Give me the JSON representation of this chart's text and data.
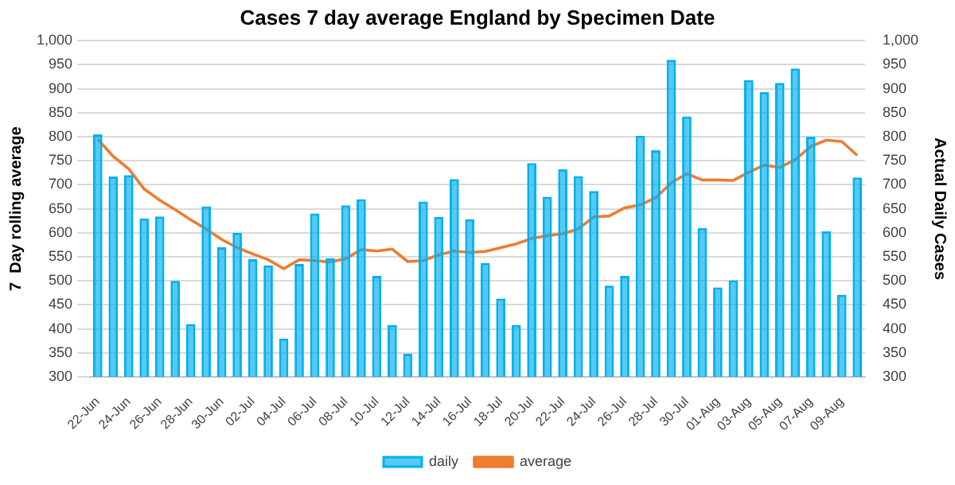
{
  "chart_data": {
    "type": "bar",
    "title": "Cases 7 day average England by Specimen Date",
    "ylabel": "7  Day rolling average",
    "y2label": "Actual Daily Cases",
    "categories": [
      "22-Jun",
      null,
      "24-Jun",
      null,
      "26-Jun",
      null,
      "28-Jun",
      null,
      "30-Jun",
      null,
      "02-Jul",
      null,
      "04-Jul",
      null,
      "06-Jul",
      null,
      "08-Jul",
      null,
      "10-Jul",
      null,
      "12-Jul",
      null,
      "14-Jul",
      null,
      "16-Jul",
      null,
      "18-Jul",
      null,
      "20-Jul",
      null,
      "22-Jul",
      null,
      "24-Jul",
      null,
      "26-Jul",
      null,
      "28-Jul",
      null,
      "30-Jul",
      null,
      "01-Aug",
      null,
      "03-Aug",
      null,
      "05-Aug",
      null,
      "07-Aug",
      null,
      "09-Aug",
      null
    ],
    "series": [
      {
        "name": "daily",
        "axis": "y2",
        "color": "#00b0f0",
        "values": [
          805,
          717,
          720,
          630,
          634,
          500,
          410,
          655,
          570,
          600,
          545,
          532,
          380,
          535,
          640,
          547,
          657,
          670,
          510,
          408,
          348,
          665,
          633,
          712,
          628,
          537,
          463,
          408,
          745,
          675,
          732,
          718,
          687,
          490,
          510,
          802,
          772,
          960,
          842,
          610,
          486,
          501,
          918,
          893,
          912,
          942,
          800,
          603,
          471,
          715
        ]
      },
      {
        "name": "average",
        "type": "line",
        "color": "#ed7d31",
        "values": [
          795,
          759,
          733,
          691,
          668,
          648,
          627,
          608,
          586,
          569,
          556,
          544,
          525,
          544,
          542,
          539,
          546,
          565,
          562,
          566,
          540,
          542,
          554,
          562,
          559,
          561,
          569,
          577,
          588,
          594,
          598,
          608,
          633,
          635,
          652,
          658,
          673,
          704,
          723,
          710,
          710,
          709,
          726,
          741,
          736,
          752,
          780,
          793,
          790,
          761
        ]
      }
    ],
    "ylim": [
      300,
      1000
    ],
    "yticks": [
      300,
      350,
      400,
      450,
      500,
      550,
      600,
      650,
      700,
      750,
      800,
      850,
      900,
      950,
      {
        "value": 1000,
        "label": "1,000"
      }
    ],
    "y2lim": [
      300,
      1000
    ],
    "y2ticks": [
      300,
      350,
      400,
      450,
      500,
      550,
      600,
      650,
      700,
      750,
      800,
      850,
      900,
      950,
      {
        "value": 1000,
        "label": "1,000"
      }
    ],
    "grid": "y",
    "legend": "bottom"
  }
}
